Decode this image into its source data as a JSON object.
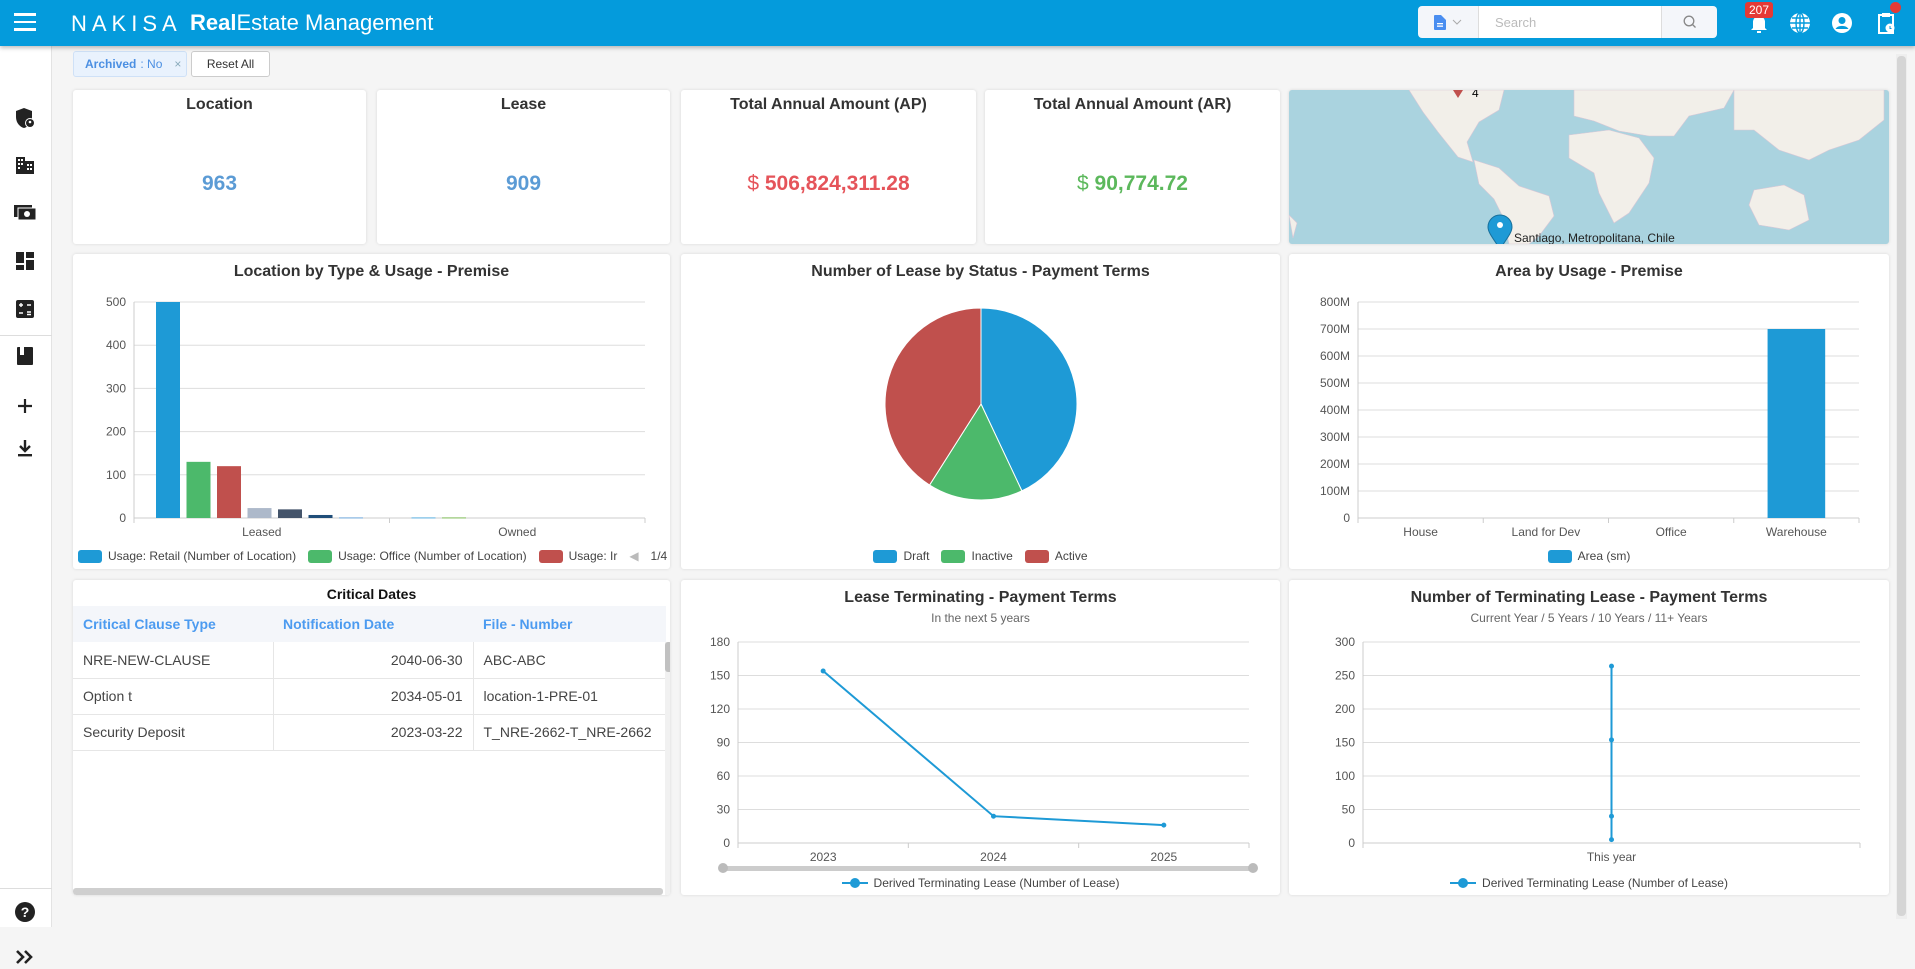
{
  "header": {
    "logo": "NAKISA",
    "title_bold": "Real",
    "title_rest": "Estate Management",
    "search_placeholder": "Search",
    "search_value": "",
    "notification_count": "207",
    "accent": "#049bdc"
  },
  "sidebar": {
    "icons": [
      "shield-user-icon",
      "building-icon",
      "money-icon",
      "dashboard-icon",
      "calculator-icon",
      "book-icon",
      "plus-icon",
      "download-icon",
      "help-icon",
      "expand-icon"
    ]
  },
  "filters": {
    "chip_key": "Archived",
    "chip_value": ": No",
    "chip_close": "×",
    "reset_label": "Reset All"
  },
  "kpis": [
    {
      "title": "Location",
      "value": "963",
      "color": "#5b9bd5"
    },
    {
      "title": "Lease",
      "value": "909",
      "color": "#5b9bd5"
    },
    {
      "title": "Total Annual Amount (AP)",
      "currency": "$",
      "value": "506,824,311.28",
      "color": "#e5545a"
    },
    {
      "title": "Total Annual Amount (AR)",
      "currency": "$",
      "value": "90,774.72",
      "color": "#5cb85c"
    }
  ],
  "map": {
    "marker_label": "Santiago, Metropolitana, Chile",
    "cluster_count": "4"
  },
  "critical_dates": {
    "title": "Critical Dates",
    "columns": [
      "Critical Clause Type",
      "Notification Date",
      "File - Number"
    ],
    "rows": [
      [
        "NRE-NEW-CLAUSE",
        "2040-06-30",
        "ABC-ABC"
      ],
      [
        "Option t",
        "2034-05-01",
        "location-1-PRE-01"
      ],
      [
        "Security Deposit",
        "2023-03-22",
        "T_NRE-2662-T_NRE-2662"
      ]
    ]
  },
  "chart_data": [
    {
      "type": "bar",
      "title": "Location by Type & Usage - Premise",
      "categories": [
        "Leased",
        "Owned"
      ],
      "ylim": [
        0,
        500
      ],
      "yticks": [
        0,
        100,
        200,
        300,
        400,
        500
      ],
      "grid": true,
      "legend_position": "bottom",
      "legend_page": "1/4",
      "series": [
        {
          "name": "Usage: Retail (Number of Location)",
          "values": [
            500,
            null
          ],
          "color": "#1e9ad6"
        },
        {
          "name": "Usage: Office (Number of Location)",
          "values": [
            130,
            null
          ],
          "color": "#4cb96b"
        },
        {
          "name": "Usage: Ir",
          "values": [
            120,
            null
          ],
          "color": "#c0504d"
        },
        {
          "values": [
            23,
            null
          ],
          "color": "#adb9ca"
        },
        {
          "values": [
            20,
            null
          ],
          "color": "#44546a"
        },
        {
          "values": [
            7,
            null
          ],
          "color": "#1f4e79"
        },
        {
          "values": [
            2,
            null
          ],
          "color": "#9dc3e6"
        },
        {
          "values": [
            null,
            2
          ],
          "color": "#8fc8ea"
        },
        {
          "values": [
            null,
            2
          ],
          "color": "#a9d18e"
        }
      ]
    },
    {
      "type": "pie",
      "title": "Number of Lease by Status - Payment Terms",
      "legend_position": "bottom",
      "slices": [
        {
          "name": "Draft",
          "value": 43,
          "color": "#1e9ad6"
        },
        {
          "name": "Inactive",
          "value": 16,
          "color": "#4cb96b"
        },
        {
          "name": "Active",
          "value": 41,
          "color": "#c0504d"
        }
      ]
    },
    {
      "type": "bar",
      "title": "Area by Usage - Premise",
      "categories": [
        "House",
        "Land for Dev",
        "Office",
        "Warehouse"
      ],
      "ylim": [
        0,
        800000000
      ],
      "yticks": [
        "0",
        "100M",
        "200M",
        "300M",
        "400M",
        "500M",
        "600M",
        "700M",
        "800M"
      ],
      "grid": true,
      "legend_position": "bottom",
      "series": [
        {
          "name": "Area (sm)",
          "values": [
            0,
            0,
            0,
            700000000
          ],
          "color": "#1e9ad6"
        }
      ]
    },
    {
      "type": "line",
      "title": "Lease Terminating - Payment Terms",
      "subtitle": "In the next 5 years",
      "categories": [
        "2023",
        "2024",
        "2025"
      ],
      "ylim": [
        0,
        180
      ],
      "yticks": [
        0,
        30,
        60,
        90,
        120,
        150,
        180
      ],
      "grid": true,
      "legend_position": "bottom",
      "series": [
        {
          "name": "Derived Terminating Lease (Number of Lease)",
          "values": [
            154,
            24,
            16
          ],
          "color": "#1e9ad6"
        }
      ]
    },
    {
      "type": "line",
      "title": "Number of Terminating Lease - Payment Terms",
      "subtitle": "Current Year / 5 Years / 10 Years / 11+ Years",
      "categories": [
        "This year"
      ],
      "ylim": [
        0,
        300
      ],
      "yticks": [
        0,
        50,
        100,
        150,
        200,
        250,
        300
      ],
      "grid": true,
      "legend_position": "bottom",
      "series": [
        {
          "name": "Derived Terminating Lease (Number of Lease)",
          "values": [
            264,
            154,
            40,
            5
          ],
          "x": [
            "This year",
            "This year",
            "This year",
            "This year"
          ],
          "color": "#1e9ad6"
        }
      ]
    }
  ]
}
